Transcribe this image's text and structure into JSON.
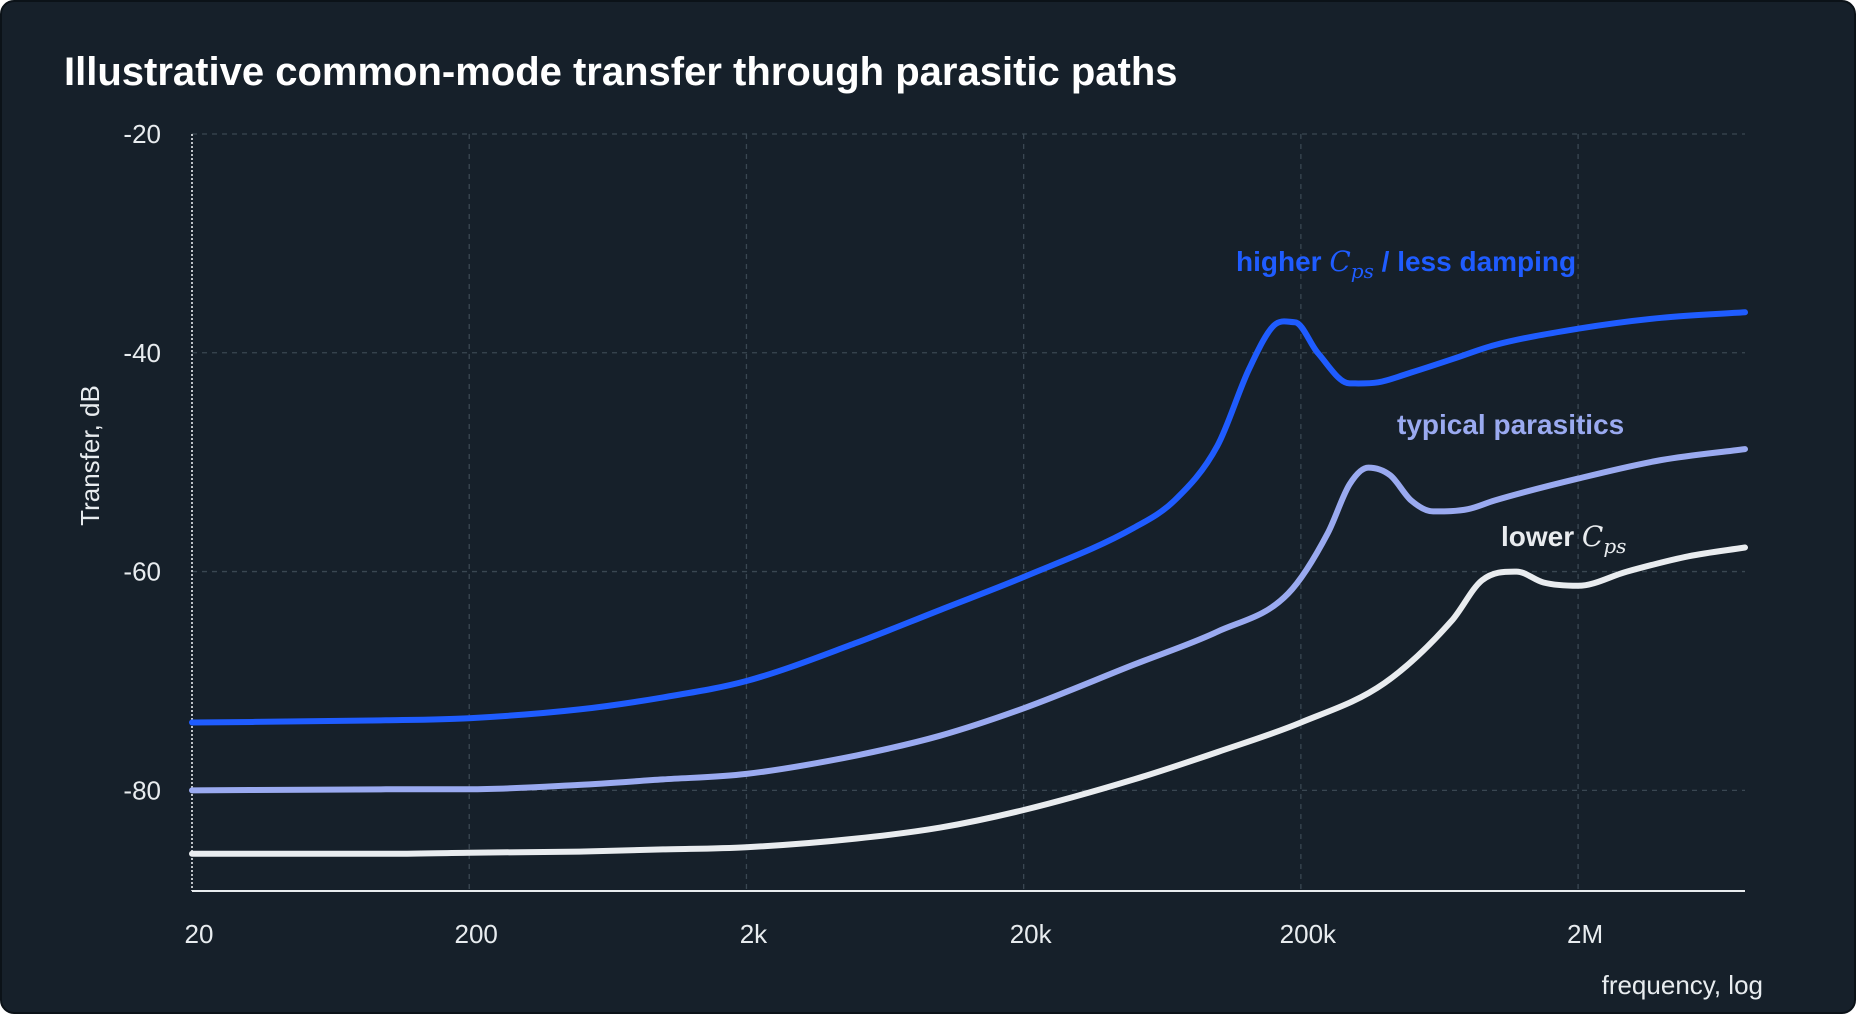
{
  "chart_data": {
    "type": "line",
    "title": "Illustrative common-mode transfer through parasitic paths",
    "xlabel": "frequency, log",
    "ylabel": "Transfer, dB",
    "xscale": "log",
    "xlim": [
      20,
      8000000
    ],
    "ylim": [
      -90,
      -20
    ],
    "x_ticks": [
      20,
      200,
      2000,
      20000,
      200000,
      2000000
    ],
    "x_tick_labels": [
      "20",
      "200",
      "2k",
      "20k",
      "200k",
      "2M"
    ],
    "y_ticks": [
      -20,
      -40,
      -60,
      -80
    ],
    "y_tick_labels": [
      "-20",
      "-40",
      "-60",
      "-80"
    ],
    "grid": true,
    "series": [
      {
        "name": "higher Cps / less damping",
        "label_main": "higher",
        "label_sym": "C",
        "label_sub": "ps",
        "label_rest": " / less damping",
        "color": "#1f5cff",
        "x": [
          20,
          100,
          200,
          500,
          1000,
          2000,
          5000,
          10000,
          20000,
          50000,
          70000,
          100000,
          130000,
          160000,
          190000,
          230000,
          300000,
          380000,
          500000,
          700000,
          1000000,
          2000000,
          4000000,
          8000000
        ],
        "y": [
          -73.8,
          -73.6,
          -73.4,
          -72.6,
          -71.5,
          -70.0,
          -66.5,
          -63.5,
          -60.5,
          -56.0,
          -53.5,
          -48.5,
          -41.5,
          -37.5,
          -37.2,
          -40.0,
          -42.8,
          -42.7,
          -41.8,
          -40.6,
          -39.3,
          -37.8,
          -36.8,
          -36.3
        ]
      },
      {
        "name": "typical parasitics",
        "label_main": "typical parasitics",
        "color": "#9aaaf0",
        "x": [
          20,
          100,
          200,
          500,
          1000,
          2000,
          5000,
          10000,
          20000,
          50000,
          100000,
          180000,
          250000,
          300000,
          350000,
          420000,
          500000,
          600000,
          800000,
          1000000,
          2000000,
          4000000,
          8000000
        ],
        "y": [
          -80.0,
          -79.9,
          -79.9,
          -79.5,
          -79.0,
          -78.5,
          -76.8,
          -75.0,
          -72.5,
          -68.5,
          -65.5,
          -62.0,
          -56.5,
          -52.0,
          -50.5,
          -51.2,
          -53.5,
          -54.5,
          -54.3,
          -53.5,
          -51.5,
          -49.8,
          -48.8
        ]
      },
      {
        "name": "lower Cps",
        "label_main": "lower",
        "label_sym": "C",
        "label_sub": "ps",
        "color": "#e9ecef",
        "x": [
          20,
          100,
          200,
          500,
          1000,
          2000,
          5000,
          10000,
          20000,
          50000,
          100000,
          200000,
          400000,
          700000,
          900000,
          1200000,
          1500000,
          2000000,
          3000000,
          5000000,
          8000000
        ],
        "y": [
          -85.8,
          -85.8,
          -85.7,
          -85.6,
          -85.4,
          -85.2,
          -84.4,
          -83.4,
          -81.8,
          -79.0,
          -76.5,
          -73.8,
          -70.2,
          -64.5,
          -60.8,
          -60.0,
          -61.0,
          -61.3,
          -60.0,
          -58.6,
          -57.8
        ]
      }
    ]
  }
}
